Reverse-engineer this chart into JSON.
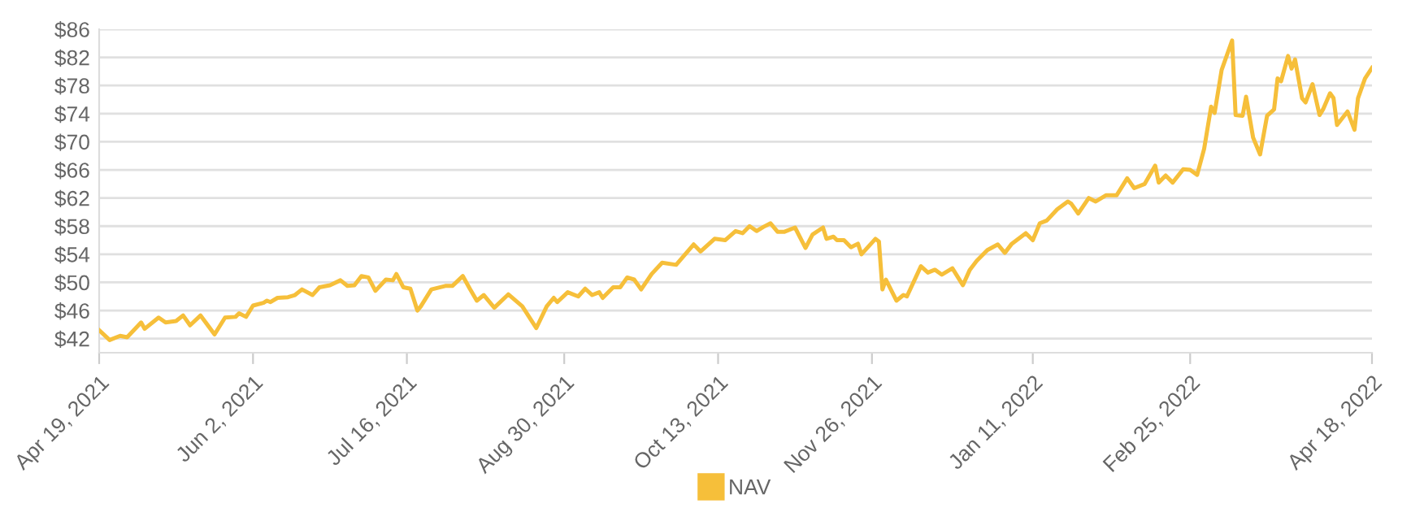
{
  "chart_data": {
    "type": "line",
    "ylim": [
      40,
      86
    ],
    "yticks": [
      {
        "value": 42,
        "label": "$42"
      },
      {
        "value": 46,
        "label": "$46"
      },
      {
        "value": 50,
        "label": "$50"
      },
      {
        "value": 54,
        "label": "$54"
      },
      {
        "value": 58,
        "label": "$58"
      },
      {
        "value": 62,
        "label": "$62"
      },
      {
        "value": 66,
        "label": "$66"
      },
      {
        "value": 70,
        "label": "$70"
      },
      {
        "value": 74,
        "label": "$74"
      },
      {
        "value": 78,
        "label": "$78"
      },
      {
        "value": 82,
        "label": "$82"
      },
      {
        "value": 86,
        "label": "$86"
      }
    ],
    "xlim": [
      "2021-04-19",
      "2022-04-18"
    ],
    "xticks": [
      {
        "value": "2021-04-19",
        "label": "Apr 19, 2021"
      },
      {
        "value": "2021-06-02",
        "label": "Jun 2, 2021"
      },
      {
        "value": "2021-07-16",
        "label": "Jul 16, 2021"
      },
      {
        "value": "2021-08-30",
        "label": "Aug 30, 2021"
      },
      {
        "value": "2021-10-13",
        "label": "Oct 13, 2021"
      },
      {
        "value": "2021-11-26",
        "label": "Nov 26, 2021"
      },
      {
        "value": "2022-01-11",
        "label": "Jan 11, 2022"
      },
      {
        "value": "2022-02-25",
        "label": "Feb 25, 2022"
      },
      {
        "value": "2022-04-18",
        "label": "Apr 18, 2022"
      }
    ],
    "grid": "y",
    "legend": "bottom",
    "marker": "none",
    "line_style": "solid",
    "x": [
      "2021-04-19",
      "2021-04-22",
      "2021-04-25",
      "2021-04-27",
      "2021-05-01",
      "2021-05-02",
      "2021-05-06",
      "2021-05-08",
      "2021-05-11",
      "2021-05-13",
      "2021-05-15",
      "2021-05-18",
      "2021-05-22",
      "2021-05-25",
      "2021-05-28",
      "2021-05-29",
      "2021-05-31",
      "2021-06-02",
      "2021-06-05",
      "2021-06-06",
      "2021-06-07",
      "2021-06-09",
      "2021-06-12",
      "2021-06-14",
      "2021-06-16",
      "2021-06-19",
      "2021-06-21",
      "2021-06-24",
      "2021-06-27",
      "2021-06-29",
      "2021-07-01",
      "2021-07-03",
      "2021-07-05",
      "2021-07-07",
      "2021-07-10",
      "2021-07-12",
      "2021-07-13",
      "2021-07-15",
      "2021-07-17",
      "2021-07-19",
      "2021-07-20",
      "2021-07-23",
      "2021-07-27",
      "2021-07-29",
      "2021-08-01",
      "2021-08-03",
      "2021-08-05",
      "2021-08-07",
      "2021-08-10",
      "2021-08-14",
      "2021-08-18",
      "2021-08-22",
      "2021-08-25",
      "2021-08-27",
      "2021-08-28",
      "2021-08-31",
      "2021-09-03",
      "2021-09-05",
      "2021-09-07",
      "2021-09-09",
      "2021-09-10",
      "2021-09-13",
      "2021-09-15",
      "2021-09-17",
      "2021-09-19",
      "2021-09-21",
      "2021-09-24",
      "2021-09-27",
      "2021-10-01",
      "2021-10-06",
      "2021-10-08",
      "2021-10-12",
      "2021-10-15",
      "2021-10-18",
      "2021-10-20",
      "2021-10-22",
      "2021-10-24",
      "2021-10-26",
      "2021-10-28",
      "2021-10-30",
      "2021-11-01",
      "2021-11-04",
      "2021-11-07",
      "2021-11-09",
      "2021-11-12",
      "2021-11-13",
      "2021-11-15",
      "2021-11-16",
      "2021-11-18",
      "2021-11-20",
      "2021-11-22",
      "2021-11-23",
      "2021-11-27",
      "2021-11-28",
      "2021-11-29",
      "2021-11-30",
      "2021-12-03",
      "2021-12-05",
      "2021-12-06",
      "2021-12-10",
      "2021-12-12",
      "2021-12-14",
      "2021-12-16",
      "2021-12-19",
      "2021-12-22",
      "2021-12-24",
      "2021-12-26",
      "2021-12-29",
      "2022-01-01",
      "2022-01-03",
      "2022-01-05",
      "2022-01-09",
      "2022-01-11",
      "2022-01-13",
      "2022-01-15",
      "2022-01-18",
      "2022-01-21",
      "2022-01-22",
      "2022-01-24",
      "2022-01-27",
      "2022-01-29",
      "2022-02-01",
      "2022-02-04",
      "2022-02-07",
      "2022-02-09",
      "2022-02-12",
      "2022-02-15",
      "2022-02-16",
      "2022-02-18",
      "2022-02-20",
      "2022-02-23",
      "2022-02-25",
      "2022-02-27",
      "2022-03-01",
      "2022-03-03",
      "2022-03-04",
      "2022-03-06",
      "2022-03-09",
      "2022-03-10",
      "2022-03-12",
      "2022-03-13",
      "2022-03-15",
      "2022-03-17",
      "2022-03-19",
      "2022-03-21",
      "2022-03-22",
      "2022-03-23",
      "2022-03-25",
      "2022-03-26",
      "2022-03-27",
      "2022-03-29",
      "2022-03-30",
      "2022-04-01",
      "2022-04-03",
      "2022-04-04",
      "2022-04-06",
      "2022-04-07",
      "2022-04-08",
      "2022-04-11",
      "2022-04-13",
      "2022-04-14",
      "2022-04-16",
      "2022-04-18"
    ],
    "series": [
      {
        "name": "NAV",
        "color": "#f6bf3a",
        "values": [
          43.2,
          41.8,
          42.4,
          42.2,
          44.3,
          43.4,
          45.0,
          44.3,
          44.5,
          45.3,
          43.9,
          45.3,
          42.6,
          45.0,
          45.1,
          45.6,
          45.1,
          46.7,
          47.1,
          47.4,
          47.2,
          47.8,
          47.9,
          48.2,
          49.0,
          48.2,
          49.3,
          49.6,
          50.3,
          49.5,
          49.6,
          50.9,
          50.7,
          48.8,
          50.4,
          50.3,
          51.2,
          49.3,
          49.1,
          46.0,
          46.6,
          49.0,
          49.5,
          49.5,
          50.9,
          49.1,
          47.4,
          48.2,
          46.4,
          48.3,
          46.6,
          43.5,
          46.6,
          47.8,
          47.2,
          48.6,
          48.0,
          49.1,
          48.2,
          48.6,
          47.8,
          49.3,
          49.3,
          50.7,
          50.4,
          49.0,
          51.2,
          52.8,
          52.5,
          55.4,
          54.4,
          56.2,
          56.0,
          57.3,
          57.0,
          58.0,
          57.3,
          57.9,
          58.4,
          57.2,
          57.2,
          57.8,
          54.9,
          56.8,
          57.8,
          56.2,
          56.5,
          56.0,
          56.0,
          55.0,
          55.5,
          54.0,
          56.2,
          55.8,
          49.0,
          50.4,
          47.4,
          48.2,
          48.0,
          52.3,
          51.4,
          51.8,
          51.1,
          52.0,
          49.6,
          51.8,
          53.1,
          54.6,
          55.4,
          54.2,
          55.5,
          57.0,
          56.0,
          58.4,
          58.8,
          60.4,
          61.5,
          61.2,
          59.8,
          62.0,
          61.5,
          62.4,
          62.4,
          64.8,
          63.4,
          64.0,
          66.6,
          64.2,
          65.2,
          64.2,
          66.1,
          66.0,
          65.3,
          69.0,
          75.0,
          74.1,
          80.2,
          84.4,
          73.8,
          73.7,
          76.4,
          70.6,
          68.2,
          73.7,
          74.6,
          79.0,
          78.6,
          82.2,
          80.4,
          81.7,
          76.2,
          75.6,
          78.2,
          73.8,
          74.6,
          76.9,
          76.2,
          72.4,
          74.3,
          71.7,
          76.2,
          79.0,
          80.5
        ]
      }
    ]
  }
}
